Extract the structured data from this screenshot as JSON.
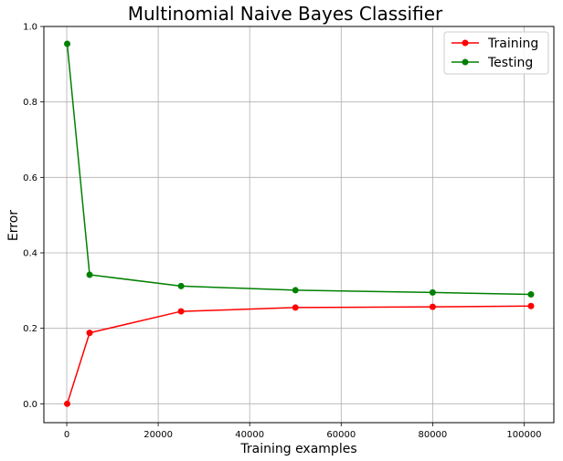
{
  "chart_data": {
    "type": "line",
    "title": "Multinomial Naive Bayes Classifier",
    "xlabel": "Training examples",
    "ylabel": "Error",
    "xlim": [
      -5000,
      106500
    ],
    "ylim": [
      -0.05,
      1.0
    ],
    "xticks": [
      0,
      20000,
      40000,
      60000,
      80000,
      100000
    ],
    "yticks": [
      0.0,
      0.2,
      0.4,
      0.6,
      0.8,
      1.0
    ],
    "xtick_labels": [
      "0",
      "20000",
      "40000",
      "60000",
      "80000",
      "100000"
    ],
    "ytick_labels": [
      "0.0",
      "0.2",
      "0.4",
      "0.6",
      "0.8",
      "1.0"
    ],
    "grid": true,
    "legend_position": "top-right",
    "x": [
      100,
      5000,
      25000,
      50000,
      80000,
      101500
    ],
    "series": [
      {
        "name": "Training",
        "color": "#ff0000",
        "values": [
          0.0,
          0.188,
          0.245,
          0.255,
          0.257,
          0.259
        ]
      },
      {
        "name": "Testing",
        "color": "#008000",
        "values": [
          0.954,
          0.342,
          0.312,
          0.301,
          0.295,
          0.29
        ]
      }
    ]
  }
}
